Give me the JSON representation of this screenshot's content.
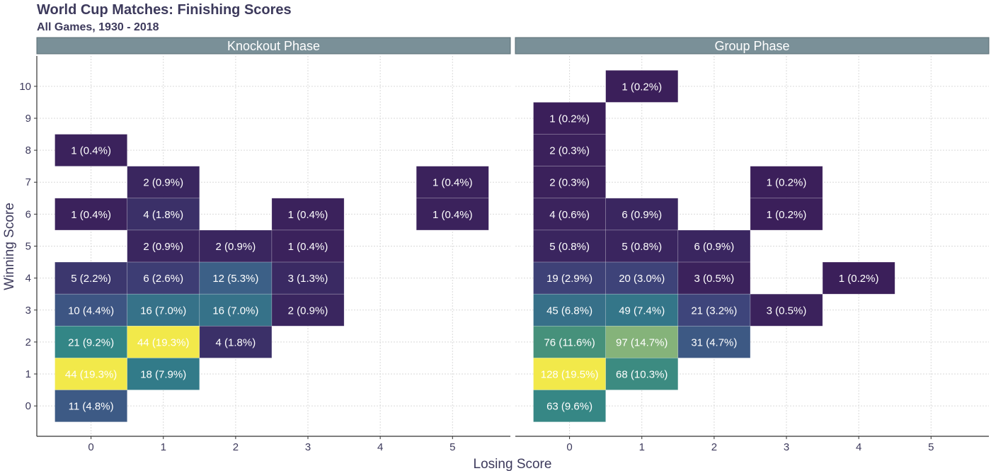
{
  "chart_data": {
    "type": "heatmap",
    "title": "World Cup Matches: Finishing Scores",
    "subtitle": "All Games, 1930 - 2018",
    "xlabel": "Losing Score",
    "ylabel": "Winning Score",
    "x_ticks": [
      0,
      1,
      2,
      3,
      4,
      5
    ],
    "y_ticks": [
      0,
      1,
      2,
      3,
      4,
      5,
      6,
      7,
      8,
      9,
      10
    ],
    "xlim": [
      -0.75,
      5.8
    ],
    "ylim": [
      -0.95,
      10.95
    ],
    "colors": {
      "strip_fill": "#7a9098",
      "low": "#3b1e59",
      "mid": "#2f8c89",
      "high": "#f2e94a",
      "text": "#3d3a5c"
    },
    "panels": [
      {
        "name": "Knockout Phase",
        "cells": [
          {
            "x": 0,
            "y": 8,
            "count": 1,
            "label": "1 (0.4%)"
          },
          {
            "x": 1,
            "y": 7,
            "count": 2,
            "label": "2 (0.9%)"
          },
          {
            "x": 5,
            "y": 7,
            "count": 1,
            "label": "1 (0.4%)"
          },
          {
            "x": 0,
            "y": 6,
            "count": 1,
            "label": "1 (0.4%)"
          },
          {
            "x": 1,
            "y": 6,
            "count": 4,
            "label": "4 (1.8%)"
          },
          {
            "x": 3,
            "y": 6,
            "count": 1,
            "label": "1 (0.4%)"
          },
          {
            "x": 5,
            "y": 6,
            "count": 1,
            "label": "1 (0.4%)"
          },
          {
            "x": 1,
            "y": 5,
            "count": 2,
            "label": "2 (0.9%)"
          },
          {
            "x": 2,
            "y": 5,
            "count": 2,
            "label": "2 (0.9%)"
          },
          {
            "x": 3,
            "y": 5,
            "count": 1,
            "label": "1 (0.4%)"
          },
          {
            "x": 0,
            "y": 4,
            "count": 5,
            "label": "5 (2.2%)"
          },
          {
            "x": 1,
            "y": 4,
            "count": 6,
            "label": "6 (2.6%)"
          },
          {
            "x": 2,
            "y": 4,
            "count": 12,
            "label": "12 (5.3%)"
          },
          {
            "x": 3,
            "y": 4,
            "count": 3,
            "label": "3 (1.3%)"
          },
          {
            "x": 0,
            "y": 3,
            "count": 10,
            "label": "10 (4.4%)"
          },
          {
            "x": 1,
            "y": 3,
            "count": 16,
            "label": "16 (7.0%)"
          },
          {
            "x": 2,
            "y": 3,
            "count": 16,
            "label": "16 (7.0%)"
          },
          {
            "x": 3,
            "y": 3,
            "count": 2,
            "label": "2 (0.9%)"
          },
          {
            "x": 0,
            "y": 2,
            "count": 21,
            "label": "21 (9.2%)"
          },
          {
            "x": 1,
            "y": 2,
            "count": 44,
            "label": "44 (19.3%)"
          },
          {
            "x": 2,
            "y": 2,
            "count": 4,
            "label": "4 (1.8%)"
          },
          {
            "x": 0,
            "y": 1,
            "count": 44,
            "label": "44 (19.3%)"
          },
          {
            "x": 1,
            "y": 1,
            "count": 18,
            "label": "18 (7.9%)"
          },
          {
            "x": 0,
            "y": 0,
            "count": 11,
            "label": "11 (4.8%)"
          }
        ]
      },
      {
        "name": "Group Phase",
        "cells": [
          {
            "x": 1,
            "y": 10,
            "count": 1,
            "label": "1 (0.2%)"
          },
          {
            "x": 0,
            "y": 9,
            "count": 1,
            "label": "1 (0.2%)"
          },
          {
            "x": 0,
            "y": 8,
            "count": 2,
            "label": "2 (0.3%)"
          },
          {
            "x": 0,
            "y": 7,
            "count": 2,
            "label": "2 (0.3%)"
          },
          {
            "x": 3,
            "y": 7,
            "count": 1,
            "label": "1 (0.2%)"
          },
          {
            "x": 0,
            "y": 6,
            "count": 4,
            "label": "4 (0.6%)"
          },
          {
            "x": 1,
            "y": 6,
            "count": 6,
            "label": "6 (0.9%)"
          },
          {
            "x": 3,
            "y": 6,
            "count": 1,
            "label": "1 (0.2%)"
          },
          {
            "x": 0,
            "y": 5,
            "count": 5,
            "label": "5 (0.8%)"
          },
          {
            "x": 1,
            "y": 5,
            "count": 5,
            "label": "5 (0.8%)"
          },
          {
            "x": 2,
            "y": 5,
            "count": 6,
            "label": "6 (0.9%)"
          },
          {
            "x": 0,
            "y": 4,
            "count": 19,
            "label": "19 (2.9%)"
          },
          {
            "x": 1,
            "y": 4,
            "count": 20,
            "label": "20 (3.0%)"
          },
          {
            "x": 2,
            "y": 4,
            "count": 3,
            "label": "3 (0.5%)"
          },
          {
            "x": 4,
            "y": 4,
            "count": 1,
            "label": "1 (0.2%)"
          },
          {
            "x": 0,
            "y": 3,
            "count": 45,
            "label": "45 (6.8%)"
          },
          {
            "x": 1,
            "y": 3,
            "count": 49,
            "label": "49 (7.4%)"
          },
          {
            "x": 2,
            "y": 3,
            "count": 21,
            "label": "21 (3.2%)"
          },
          {
            "x": 3,
            "y": 3,
            "count": 3,
            "label": "3 (0.5%)"
          },
          {
            "x": 0,
            "y": 2,
            "count": 76,
            "label": "76 (11.6%)"
          },
          {
            "x": 1,
            "y": 2,
            "count": 97,
            "label": "97 (14.7%)"
          },
          {
            "x": 2,
            "y": 2,
            "count": 31,
            "label": "31 (4.7%)"
          },
          {
            "x": 0,
            "y": 1,
            "count": 128,
            "label": "128 (19.5%)"
          },
          {
            "x": 1,
            "y": 1,
            "count": 68,
            "label": "68 (10.3%)"
          },
          {
            "x": 0,
            "y": 0,
            "count": 63,
            "label": "63 (9.6%)"
          }
        ]
      }
    ]
  }
}
